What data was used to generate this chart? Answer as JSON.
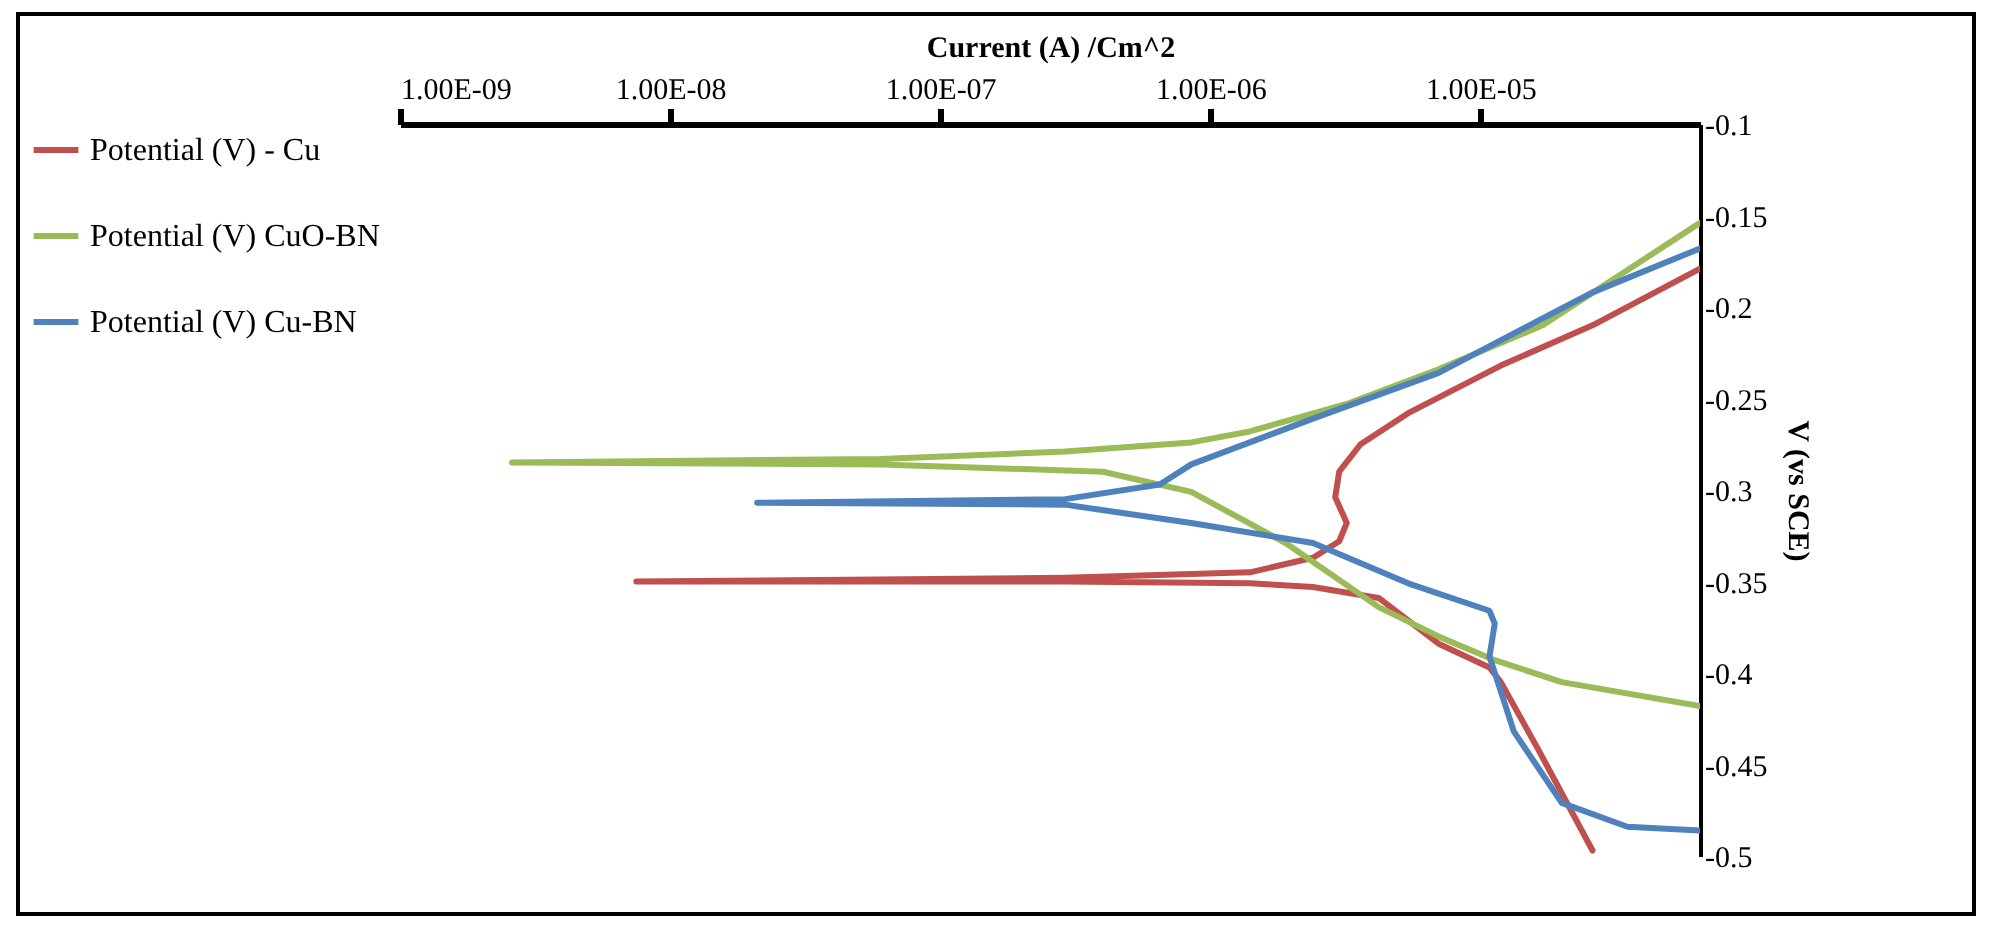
{
  "chart_data": {
    "type": "line",
    "xlabel": "Current (A) /Cm^2",
    "ylabel": "V (vs SCE)",
    "log": "x",
    "grid": false,
    "legend": "left",
    "line_style": "solid",
    "marker": "none",
    "xlim": [
      1e-09,
      6.5e-05
    ],
    "xticks": [
      {
        "value": 1e-09,
        "label": "1.00E-09"
      },
      {
        "value": 1e-08,
        "label": "1.00E-08"
      },
      {
        "value": 1e-07,
        "label": "1.00E-07"
      },
      {
        "value": 1e-06,
        "label": "1.00E-06"
      },
      {
        "value": 1e-05,
        "label": "1.00E-05"
      }
    ],
    "ylim": [
      -0.5,
      -0.1
    ],
    "yticks": [
      -0.1,
      -0.15,
      -0.2,
      -0.25,
      -0.3,
      -0.35,
      -0.4,
      -0.45,
      -0.5
    ],
    "series": [
      {
        "name": "Potential (V) - Cu",
        "color": "#c0504d",
        "x": [
          2.6e-05,
          1.64e-05,
          1.19e-05,
          1.08e-05,
          7e-06,
          4.2e-06,
          2.4e-06,
          1.4e-06,
          2.9e-07,
          7.5e-09,
          2.9e-07,
          1.4e-06,
          2.4e-06,
          3e-06,
          3.2e-06,
          2.9e-06,
          3e-06,
          3.6e-06,
          5.4e-06,
          1.19e-05,
          2.6e-05,
          6.5e-05
        ],
        "values": [
          -0.497,
          -0.442,
          -0.405,
          -0.397,
          -0.384,
          -0.359,
          -0.353,
          -0.351,
          -0.35,
          -0.35,
          -0.348,
          -0.345,
          -0.337,
          -0.328,
          -0.318,
          -0.304,
          -0.29,
          -0.275,
          -0.258,
          -0.232,
          -0.21,
          -0.179
        ]
      },
      {
        "name": "Potential (V) CuO-BN",
        "color": "#9bbb59",
        "x": [
          6.5e-05,
          2e-05,
          1.13e-05,
          7e-06,
          4.2e-06,
          1.9e-06,
          8.5e-07,
          4e-07,
          6e-08,
          2.6e-09,
          6e-08,
          2.9e-07,
          8.5e-07,
          1.4e-06,
          3.2e-06,
          7e-06,
          1.7e-05,
          6.5e-05
        ],
        "values": [
          -0.418,
          -0.405,
          -0.393,
          -0.38,
          -0.364,
          -0.329,
          -0.301,
          -0.29,
          -0.286,
          -0.285,
          -0.283,
          -0.279,
          -0.274,
          -0.268,
          -0.253,
          -0.234,
          -0.21,
          -0.154
        ]
      },
      {
        "name": "Potential (V) Cu-BN",
        "color": "#4f81bd",
        "x": [
          6.5e-05,
          3.5e-05,
          2e-05,
          1.33e-05,
          1.08e-05,
          1.13e-05,
          1.08e-05,
          5.4e-06,
          2.4e-06,
          8.5e-07,
          2.9e-07,
          2.1e-08,
          2.9e-07,
          6.5e-07,
          8.5e-07,
          2.4e-06,
          7e-06,
          2.6e-05,
          6.5e-05
        ],
        "values": [
          -0.486,
          -0.484,
          -0.471,
          -0.432,
          -0.391,
          -0.373,
          -0.366,
          -0.351,
          -0.329,
          -0.318,
          -0.308,
          -0.307,
          -0.305,
          -0.297,
          -0.286,
          -0.261,
          -0.236,
          -0.192,
          -0.168
        ]
      }
    ]
  }
}
